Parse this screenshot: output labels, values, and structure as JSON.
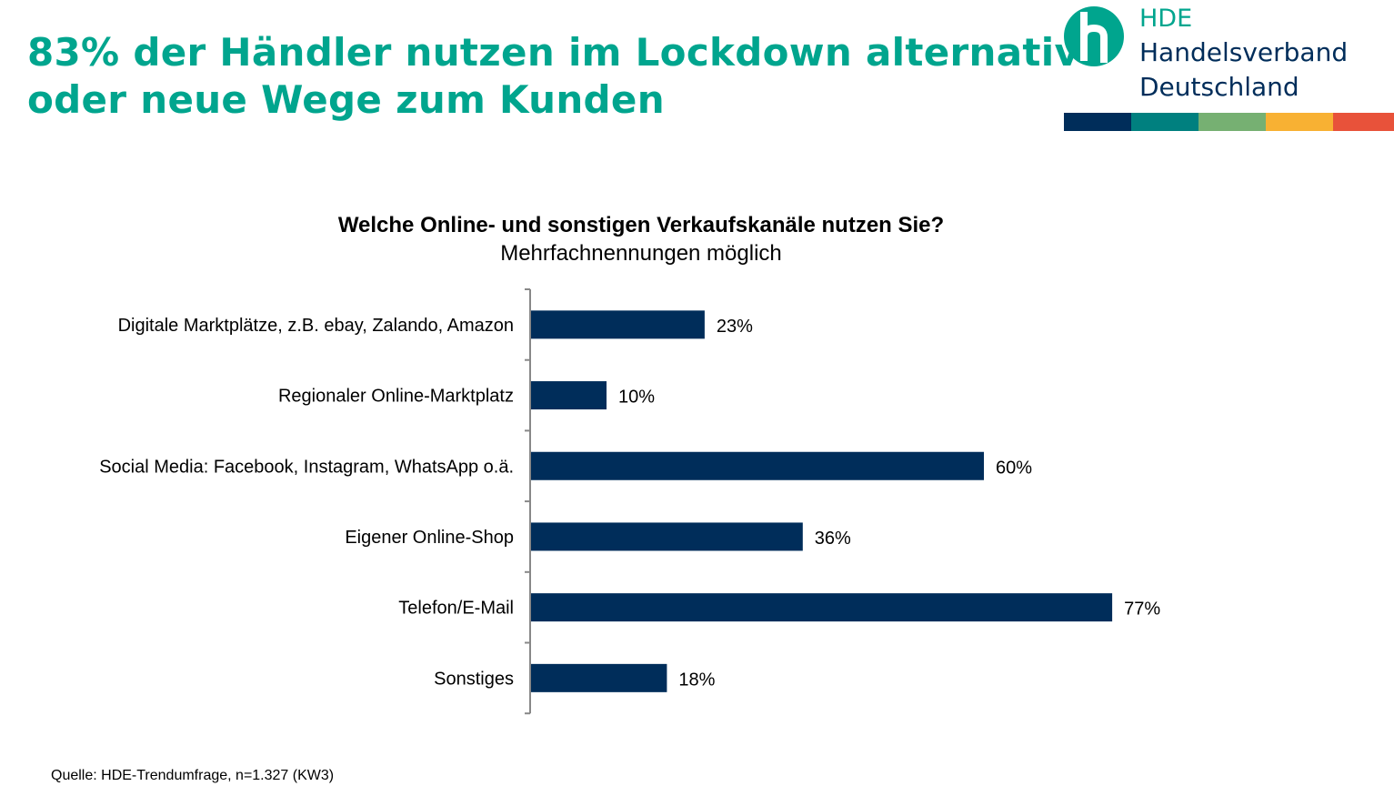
{
  "header": {
    "title_line1": "83% der Händler nutzen im Lockdown alternative",
    "title_line2": "oder neue Wege zum Kunden",
    "title_color": "#00a58e"
  },
  "logo": {
    "abbr": "HDE",
    "line1": "Handelsverband",
    "line2": "Deutschland",
    "stripe_colors": [
      "#002d5a",
      "#00807f",
      "#76b072",
      "#f8b133",
      "#e8523a"
    ]
  },
  "chart_data": {
    "type": "bar",
    "orientation": "horizontal",
    "title": "Welche Online- und sonstigen Verkaufskanäle nutzen Sie?",
    "subtitle": "Mehrfachnennungen möglich",
    "categories": [
      "Digitale Marktplätze, z.B. ebay, Zalando, Amazon",
      "Regionaler Online-Marktplatz",
      "Social Media: Facebook, Instagram, WhatsApp o.ä.",
      "Eigener Online-Shop",
      "Telefon/E-Mail",
      "Sonstiges"
    ],
    "values": [
      23,
      10,
      60,
      36,
      77,
      18
    ],
    "data_labels": [
      "23%",
      "10%",
      "60%",
      "36%",
      "77%",
      "18%"
    ],
    "unit": "%",
    "bar_color": "#002d5a",
    "grid": false,
    "legend": "none"
  },
  "footer": {
    "source": "Quelle: HDE-Trendumfrage, n=1.327 (KW3)"
  }
}
